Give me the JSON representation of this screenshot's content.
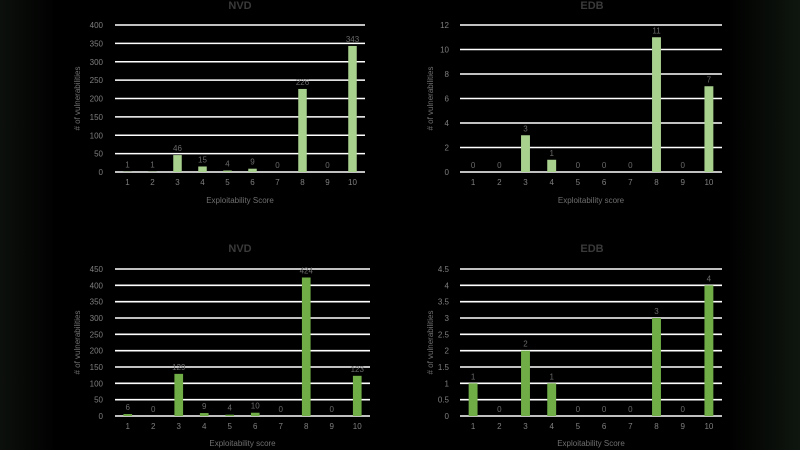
{
  "chart_data": [
    {
      "type": "bar",
      "title": "NVD",
      "xlabel": "Exploitability Score",
      "ylabel": "# of vulnerabilities",
      "categories": [
        "1",
        "2",
        "3",
        "4",
        "5",
        "6",
        "7",
        "8",
        "9",
        "10"
      ],
      "values": [
        1,
        1,
        46,
        15,
        4,
        9,
        0,
        226,
        0,
        343
      ],
      "ylim": [
        0,
        400
      ],
      "yticks": [
        0,
        50,
        100,
        150,
        200,
        250,
        300,
        350,
        400
      ],
      "grid": true,
      "bar_color": "#a9d18e"
    },
    {
      "type": "bar",
      "title": "EDB",
      "xlabel": "Exploitability score",
      "ylabel": "# of vulnerabilities",
      "categories": [
        "1",
        "2",
        "3",
        "4",
        "5",
        "6",
        "7",
        "8",
        "9",
        "10"
      ],
      "values": [
        0,
        0,
        3,
        1,
        0,
        0,
        0,
        11,
        0,
        7
      ],
      "ylim": [
        0,
        12
      ],
      "yticks": [
        0,
        2,
        4,
        6,
        8,
        10,
        12
      ],
      "grid": true,
      "bar_color": "#a9d18e"
    },
    {
      "type": "bar",
      "title": "NVD",
      "xlabel": "Exploitability score",
      "ylabel": "# of vulnerabilities",
      "categories": [
        "1",
        "2",
        "3",
        "4",
        "5",
        "6",
        "7",
        "8",
        "9",
        "10"
      ],
      "values": [
        6,
        0,
        129,
        9,
        4,
        10,
        0,
        424,
        0,
        123
      ],
      "ylim": [
        0,
        450
      ],
      "yticks": [
        0,
        50,
        100,
        150,
        200,
        250,
        300,
        350,
        400,
        450
      ],
      "grid": true,
      "bar_color": "#70ad47"
    },
    {
      "type": "bar",
      "title": "EDB",
      "xlabel": "Exploitability Score",
      "ylabel": "# of vulnerabilities",
      "categories": [
        "1",
        "2",
        "3",
        "4",
        "5",
        "6",
        "7",
        "8",
        "9",
        "10"
      ],
      "values": [
        1,
        0,
        2,
        1,
        0,
        0,
        0,
        3,
        0,
        4
      ],
      "ylim": [
        0,
        4.5
      ],
      "yticks": [
        0,
        0.5,
        1,
        1.5,
        2,
        2.5,
        3,
        3.5,
        4,
        4.5
      ],
      "grid": true,
      "bar_color": "#70ad47"
    }
  ]
}
